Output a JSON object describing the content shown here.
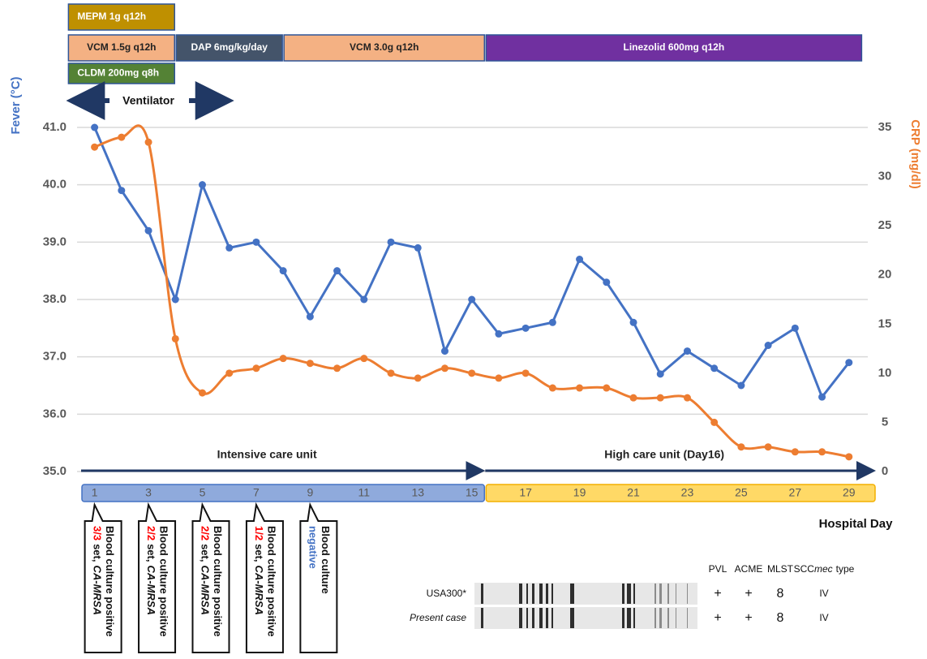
{
  "chart_data": {
    "type": "line",
    "ylabel": "Fever (°C)",
    "y2label": "CRP (mg/dl)",
    "xlabel": "Hospital Day",
    "x": [
      1,
      2,
      3,
      4,
      5,
      6,
      7,
      8,
      9,
      10,
      11,
      12,
      13,
      14,
      15,
      16,
      17,
      18,
      19,
      20,
      21,
      22,
      23,
      24,
      25,
      26,
      27,
      28,
      29
    ],
    "xlim": [
      0.5,
      30
    ],
    "xticks": [
      1,
      3,
      5,
      7,
      9,
      11,
      13,
      15,
      17,
      19,
      21,
      23,
      25,
      27,
      29
    ],
    "ylim": [
      35,
      41
    ],
    "yticks": [
      {
        "value": 35,
        "label": "35.0"
      },
      {
        "value": 36,
        "label": "36.0"
      },
      {
        "value": 37,
        "label": "37.0"
      },
      {
        "value": 38,
        "label": "38.0"
      },
      {
        "value": 39,
        "label": "39.0"
      },
      {
        "value": 40,
        "label": "40.0",
        "color": "#ff0000"
      },
      {
        "value": 41,
        "label": "41.0"
      }
    ],
    "y2lim": [
      0,
      35
    ],
    "y2ticks": [
      0,
      5,
      10,
      15,
      20,
      25,
      30,
      35
    ],
    "grid": true,
    "series": [
      {
        "color": "#4472c4",
        "values": [
          41.0,
          39.9,
          39.2,
          38.0,
          40.0,
          38.9,
          39.0,
          38.5,
          37.7,
          38.5,
          38.0,
          39.0,
          38.9,
          37.1,
          38.0,
          37.4,
          37.5,
          37.6,
          38.7,
          38.3,
          37.6,
          36.7,
          37.1,
          36.8,
          36.5,
          37.2,
          37.5,
          36.3,
          36.9
        ]
      },
      {
        "color": "#ed7d31",
        "axis": "y2",
        "smooth": true,
        "values": [
          33,
          34,
          33.5,
          13.5,
          8,
          10,
          10.5,
          11.5,
          11,
          10.5,
          11.5,
          10,
          9.5,
          10.5,
          10,
          9.5,
          10,
          8.5,
          8.5,
          8.5,
          7.5,
          7.5,
          7.5,
          5,
          2.5,
          2.5,
          2,
          2,
          1.5
        ]
      }
    ],
    "wards": [
      {
        "label": "Intensive care unit",
        "start": 0.5,
        "end": 15.5,
        "fill": "#8faadc",
        "stroke": "#4472c4"
      },
      {
        "label": "High care unit (Day16)",
        "start": 15.5,
        "end": 30,
        "fill": "#ffd966",
        "stroke": "#f4b000"
      }
    ],
    "therapy_rows": [
      [
        {
          "label": "MEPM 1g q12h",
          "start": 0,
          "end": 4,
          "fill": "#bf9000",
          "text": "#ffffff"
        }
      ],
      [
        {
          "label": "VCM 1.5g q12h",
          "start": 0,
          "end": 4,
          "fill": "#f4b183",
          "text": "#222222"
        },
        {
          "label": "DAP 6mg/kg/day",
          "start": 4,
          "end": 8,
          "fill": "#44546a",
          "text": "#ffffff"
        },
        {
          "label": "VCM 3.0g q12h",
          "start": 8,
          "end": 15.5,
          "fill": "#f4b183",
          "text": "#222222"
        },
        {
          "label": "Linezolid 600mg q12h",
          "start": 15.5,
          "end": 29.5,
          "fill": "#7030a0",
          "text": "#ffffff"
        }
      ],
      [
        {
          "label": "CLDM 200mg q8h",
          "start": 0,
          "end": 4,
          "fill": "#548235",
          "text": "#ffffff"
        }
      ]
    ],
    "ventilator": {
      "label": "Ventilator",
      "start": 0,
      "end": 6
    },
    "cultures": [
      {
        "day": 1,
        "title": "Blood culture positive",
        "count": "3/3",
        "suffix": "set,",
        "organism": "CA-MRSA"
      },
      {
        "day": 3,
        "title": "Blood culture positive",
        "count": "2/2",
        "suffix": "set,",
        "organism": "CA-MRSA"
      },
      {
        "day": 5,
        "title": "Blood culture positive",
        "count": "2/2",
        "suffix": "set,",
        "organism": "CA-MRSA"
      },
      {
        "day": 7,
        "title": "Blood culture positive",
        "count": "1/2",
        "suffix": "set,",
        "organism": "CA-MRSA"
      },
      {
        "day": 9,
        "title": "Blood culture",
        "result": "negative"
      }
    ]
  },
  "typing": {
    "headers": [
      "PVL",
      "ACME",
      "MLST",
      {
        "prefix": "SCC",
        "italic": "mec",
        "suffix": "type"
      }
    ],
    "rows": [
      {
        "label": "USA300*",
        "values": [
          "+",
          "+",
          8,
          "IV"
        ]
      },
      {
        "label": "Present case",
        "values": [
          "+",
          "+",
          8,
          "IV"
        ]
      }
    ]
  }
}
